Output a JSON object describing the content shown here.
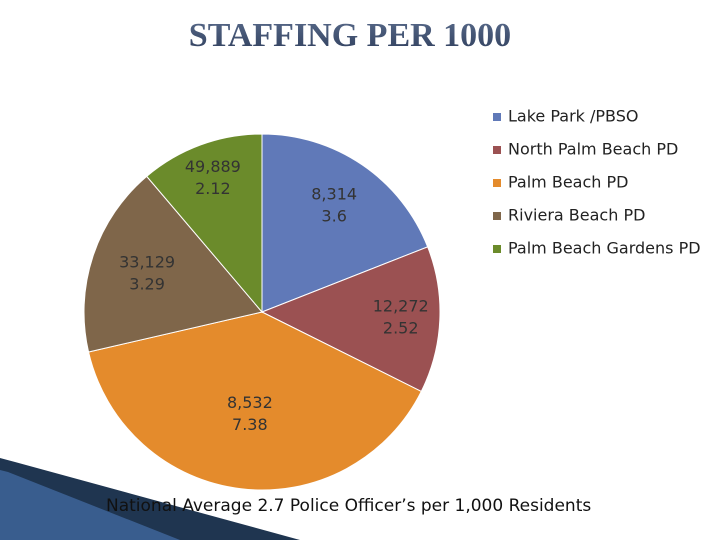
{
  "chart_data": {
    "type": "pie",
    "title": "STAFFING PER 1000",
    "categories": [
      "Lake Park /PBSO",
      "North Palm Beach  PD",
      "Palm Beach PD",
      "Riviera Beach PD",
      "Palm Beach Gardens PD"
    ],
    "values": [
      3.6,
      2.52,
      7.38,
      3.29,
      2.12
    ],
    "populations": [
      "8,314",
      "12,272",
      "8,532",
      "33,129",
      "49,889"
    ],
    "colors": [
      "#6079b8",
      "#9b5152",
      "#e48b2c",
      "#7f664a",
      "#6b8b2b"
    ],
    "legend": "right",
    "annotation": "National Average 2.7 Police Officer’s per 1,000 Residents"
  }
}
